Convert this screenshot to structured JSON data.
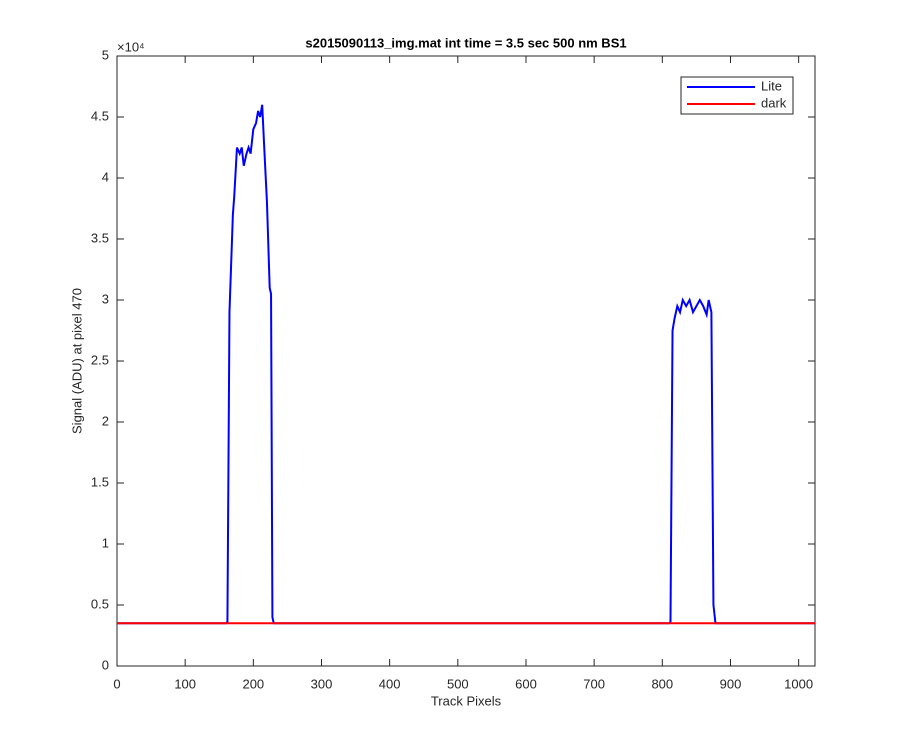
{
  "chart_data": {
    "type": "line",
    "title": "s2015090113_img.mat int time = 3.5 sec  500 nm BS1",
    "x_label": "Track Pixels",
    "y_label": "Signal (ADU) at pixel 470",
    "y_exponent_label": "×10⁴",
    "xlim": [
      0,
      1024
    ],
    "xticks": [
      0,
      100,
      200,
      300,
      400,
      500,
      600,
      700,
      800,
      900,
      1000
    ],
    "ylim": [
      0,
      50000
    ],
    "yticks": [
      {
        "value": 0,
        "label": "0"
      },
      {
        "value": 5000,
        "label": "0.5"
      },
      {
        "value": 10000,
        "label": "1"
      },
      {
        "value": 15000,
        "label": "1.5"
      },
      {
        "value": 20000,
        "label": "2"
      },
      {
        "value": 25000,
        "label": "2.5"
      },
      {
        "value": 30000,
        "label": "3"
      },
      {
        "value": 35000,
        "label": "3.5"
      },
      {
        "value": 40000,
        "label": "4"
      },
      {
        "value": 45000,
        "label": "4.5"
      },
      {
        "value": 50000,
        "label": "5"
      }
    ],
    "legend_position": "upper-right",
    "series": [
      {
        "name": "Lite",
        "color": "#0000ff",
        "x": [
          0,
          160,
          162,
          165,
          170,
          172,
          176,
          180,
          183,
          186,
          190,
          193,
          196,
          200,
          204,
          207,
          210,
          213,
          216,
          220,
          224,
          226,
          228,
          230,
          810,
          812,
          815,
          818,
          822,
          826,
          830,
          835,
          840,
          845,
          850,
          855,
          860,
          865,
          868,
          872,
          875,
          878,
          1024
        ],
        "values": [
          3500,
          3500,
          3600,
          29000,
          37000,
          38500,
          42500,
          42000,
          42500,
          41000,
          42000,
          42500,
          42000,
          44000,
          44500,
          45500,
          45000,
          46000,
          42500,
          38000,
          31000,
          30500,
          4000,
          3500,
          3500,
          3600,
          27500,
          28500,
          29500,
          29000,
          30000,
          29500,
          30000,
          29000,
          29500,
          30000,
          29500,
          28800,
          30000,
          29000,
          5000,
          3500,
          3500
        ]
      },
      {
        "name": "dark",
        "color": "#ff0000",
        "x": [
          0,
          1024
        ],
        "values": [
          3500,
          3500
        ]
      }
    ]
  }
}
